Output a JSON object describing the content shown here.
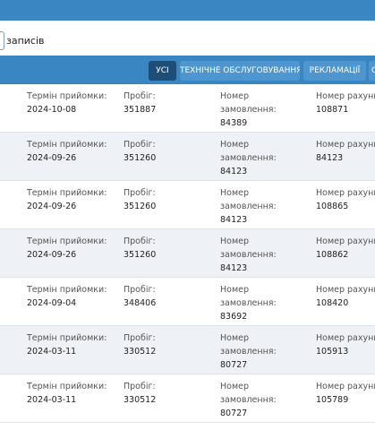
{
  "records": {
    "label": "записів"
  },
  "tabs": [
    {
      "label": "УСІ",
      "active": true
    },
    {
      "label": "ТЕХНІЧНЕ ОБСЛУГОВУВАННЯ",
      "active": false
    },
    {
      "label": "РЕКЛАМАЦІЇ",
      "active": false
    },
    {
      "label": "О",
      "active": false
    }
  ],
  "labels": {
    "date": "Термін прийомки:",
    "mileage": "Пробіг:",
    "order_l1": "Номер",
    "order_l2": "замовлення:",
    "invoice": "Номер рахунку"
  },
  "rows": [
    {
      "date": "2024-10-08",
      "mileage": "351887",
      "order": "84389",
      "invoice": "108871"
    },
    {
      "date": "2024-09-26",
      "mileage": "351260",
      "order": "84123",
      "invoice": "84123"
    },
    {
      "date": "2024-09-26",
      "mileage": "351260",
      "order": "84123",
      "invoice": "108865"
    },
    {
      "date": "2024-09-26",
      "mileage": "351260",
      "order": "84123",
      "invoice": "108862"
    },
    {
      "date": "2024-09-04",
      "mileage": "348406",
      "order": "83692",
      "invoice": "108420"
    },
    {
      "date": "2024-03-11",
      "mileage": "330512",
      "order": "80727",
      "invoice": "105913"
    },
    {
      "date": "2024-03-11",
      "mileage": "330512",
      "order": "80727",
      "invoice": "105789"
    }
  ]
}
